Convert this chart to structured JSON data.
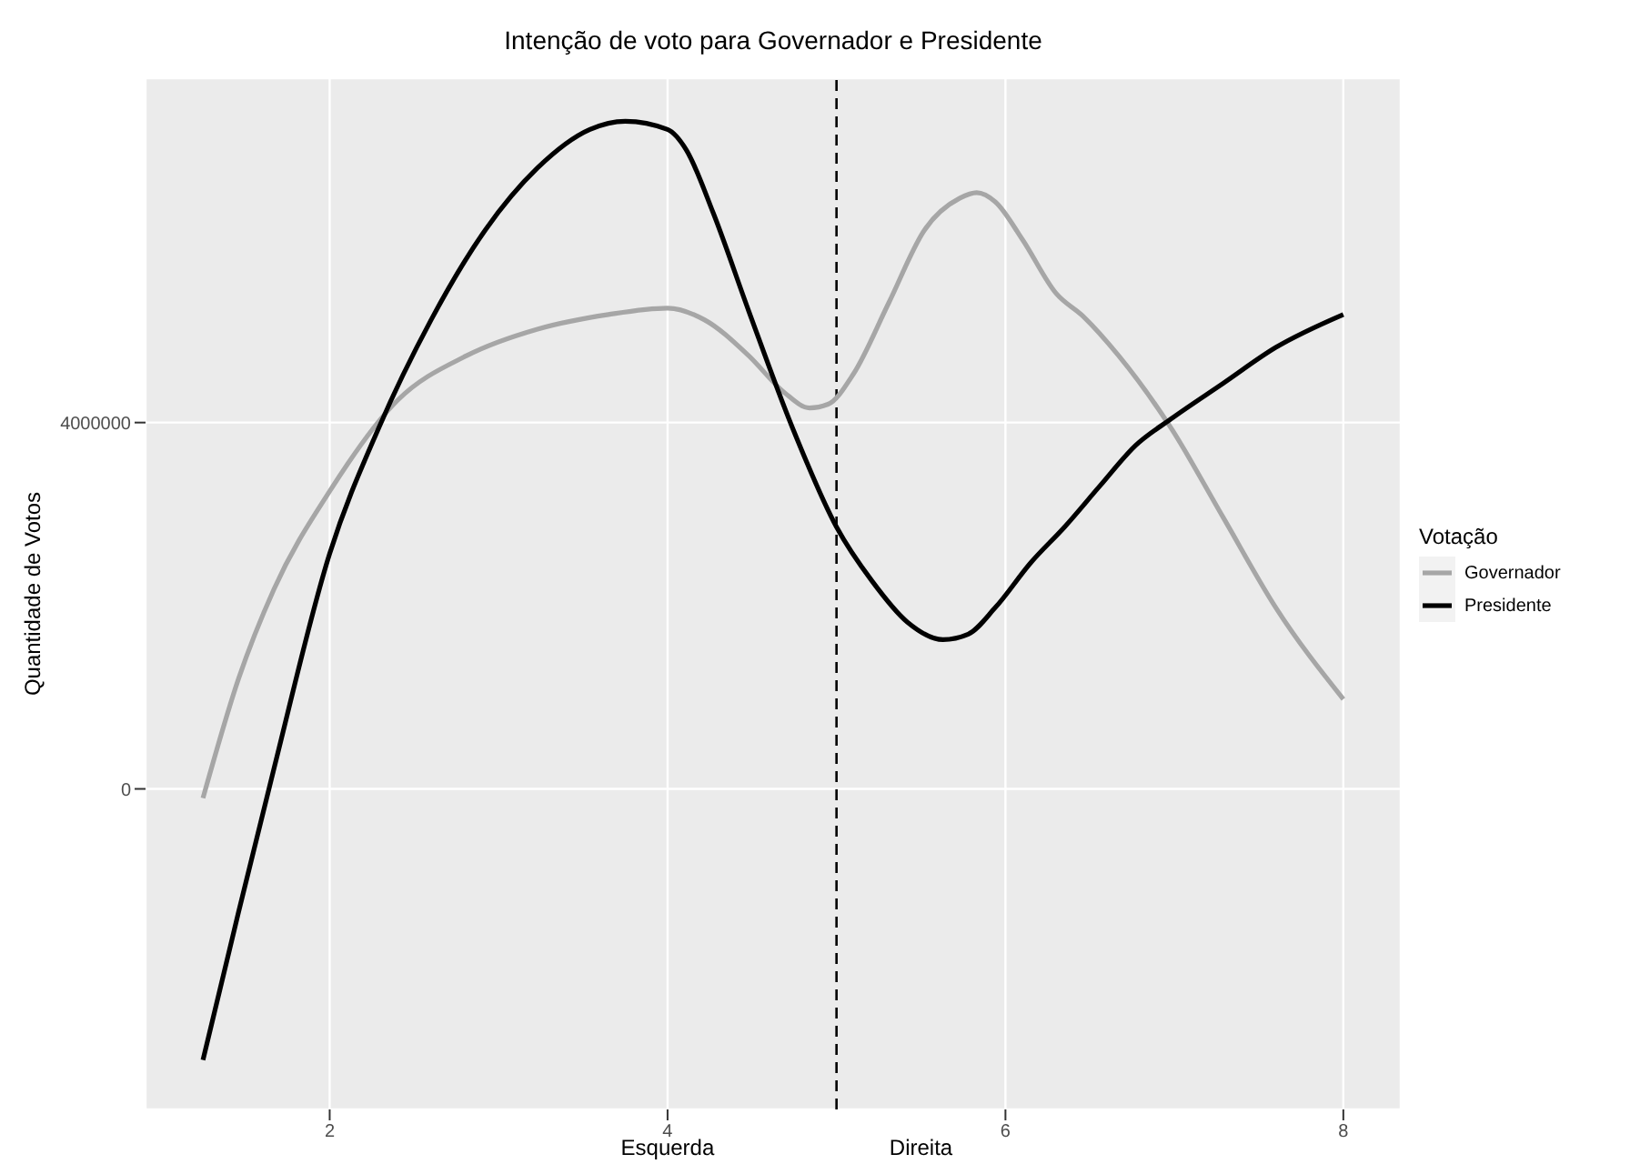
{
  "chart_data": {
    "type": "line",
    "title": "Intenção de voto para Governador e Presidente",
    "ylabel": "Quantidade de Votos",
    "legend_title": "Votação",
    "annotations": [
      "Esquerda",
      "Direita"
    ],
    "xlim": [
      0.91,
      8.34
    ],
    "xticks": [
      2,
      4,
      6,
      8
    ],
    "ylim": [
      -3500000,
      7760000
    ],
    "yticks": [
      0,
      4000000
    ],
    "grid": true,
    "legend": "right",
    "line_style": "solid",
    "marker": "none",
    "ref_lines": [
      {
        "axis": "x",
        "value": 5,
        "line_style": "dashed",
        "color": "#000000"
      }
    ],
    "series": [
      {
        "name": "Governador",
        "color": "#a6a6a6",
        "x": [
          1.25,
          1.46,
          1.67,
          2.0,
          2.4,
          2.81,
          3.23,
          3.65,
          4.0,
          4.22,
          4.48,
          4.69,
          4.84,
          4.95,
          5.1,
          5.31,
          5.52,
          5.73,
          5.83,
          5.94,
          6.1,
          6.3,
          6.46,
          6.67,
          6.98,
          7.29,
          7.6,
          8.0
        ],
        "values": [
          -100000,
          1200000,
          2180000,
          3250000,
          4240000,
          4730000,
          5020000,
          5180000,
          5250000,
          5120000,
          4730000,
          4330000,
          4160000,
          4200000,
          4530000,
          5310000,
          6100000,
          6450000,
          6510000,
          6410000,
          6000000,
          5410000,
          5160000,
          4730000,
          3940000,
          2960000,
          1980000,
          980000
        ]
      },
      {
        "name": "Presidente",
        "color": "#000000",
        "x": [
          1.25,
          1.46,
          1.67,
          2.0,
          2.29,
          2.6,
          2.92,
          3.23,
          3.54,
          3.75,
          4.0,
          4.11,
          4.27,
          4.48,
          4.74,
          5.0,
          5.21,
          5.42,
          5.63,
          5.78,
          5.94,
          6.15,
          6.35,
          6.56,
          6.77,
          6.98,
          7.29,
          7.6,
          8.0
        ],
        "values": [
          -2960000,
          -1350000,
          220000,
          2570000,
          3940000,
          5120000,
          6100000,
          6780000,
          7200000,
          7290000,
          7200000,
          6980000,
          6290000,
          5220000,
          3940000,
          2860000,
          2270000,
          1820000,
          1630000,
          1690000,
          1980000,
          2470000,
          2860000,
          3310000,
          3750000,
          4040000,
          4430000,
          4820000,
          5180000
        ]
      }
    ]
  }
}
